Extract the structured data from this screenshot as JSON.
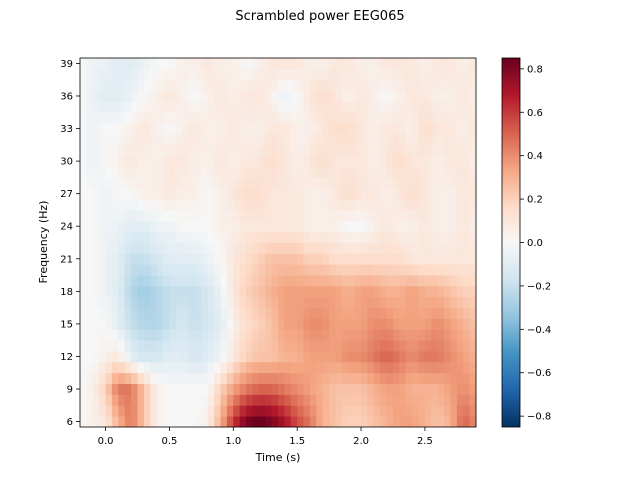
{
  "chart_data": {
    "type": "heatmap",
    "title": "Scrambled power EEG065",
    "xlabel": "Time (s)",
    "ylabel": "Frequency (Hz)",
    "xlim": [
      -0.2,
      2.9
    ],
    "ylim": [
      5.5,
      39.5
    ],
    "x_ticks": [
      "0.0",
      "0.5",
      "1.0",
      "1.5",
      "2.0",
      "2.5"
    ],
    "y_ticks": [
      "6",
      "9",
      "12",
      "15",
      "18",
      "21",
      "24",
      "27",
      "30",
      "33",
      "36",
      "39"
    ],
    "colorbar": {
      "min": -0.85,
      "max": 0.85,
      "ticks": [
        "0.8",
        "0.6",
        "0.4",
        "0.2",
        "0.0",
        "−0.2",
        "−0.4",
        "−0.6",
        "−0.8"
      ],
      "colormap": "RdBu_r"
    },
    "time_points": [
      -0.2,
      -0.1,
      0.0,
      0.1,
      0.2,
      0.3,
      0.4,
      0.5,
      0.6,
      0.7,
      0.8,
      0.9,
      1.0,
      1.1,
      1.2,
      1.3,
      1.4,
      1.5,
      1.6,
      1.7,
      1.8,
      1.9,
      2.0,
      2.1,
      2.2,
      2.3,
      2.4,
      2.5,
      2.6,
      2.7,
      2.8,
      2.9
    ],
    "frequencies": [
      6,
      9,
      12,
      15,
      18,
      21,
      24,
      27,
      30,
      33,
      36,
      39
    ],
    "values": [
      [
        0.0,
        0.05,
        0.1,
        0.3,
        0.45,
        0.25,
        0.05,
        0.0,
        0.0,
        0.0,
        0.05,
        0.3,
        0.6,
        0.8,
        0.85,
        0.8,
        0.7,
        0.55,
        0.45,
        0.3,
        0.25,
        0.2,
        0.2,
        0.25,
        0.3,
        0.35,
        0.35,
        0.3,
        0.25,
        0.3,
        0.5,
        0.4
      ],
      [
        0.0,
        0.05,
        0.2,
        0.45,
        0.45,
        0.25,
        0.05,
        0.0,
        0.0,
        0.0,
        0.0,
        0.2,
        0.35,
        0.45,
        0.5,
        0.5,
        0.45,
        0.4,
        0.35,
        0.3,
        0.25,
        0.25,
        0.25,
        0.3,
        0.35,
        0.35,
        0.3,
        0.3,
        0.3,
        0.35,
        0.4,
        0.35
      ],
      [
        0.0,
        0.0,
        0.05,
        0.1,
        -0.1,
        -0.15,
        -0.15,
        -0.1,
        -0.1,
        -0.15,
        -0.1,
        -0.05,
        0.1,
        0.2,
        0.25,
        0.25,
        0.3,
        0.3,
        0.35,
        0.35,
        0.35,
        0.4,
        0.4,
        0.45,
        0.5,
        0.45,
        0.4,
        0.45,
        0.45,
        0.4,
        0.35,
        0.3
      ],
      [
        0.0,
        0.0,
        0.0,
        -0.1,
        -0.2,
        -0.25,
        -0.25,
        -0.2,
        -0.15,
        -0.2,
        -0.15,
        -0.1,
        0.05,
        0.15,
        0.2,
        0.25,
        0.35,
        0.35,
        0.4,
        0.4,
        0.35,
        0.35,
        0.35,
        0.4,
        0.4,
        0.35,
        0.35,
        0.35,
        0.4,
        0.35,
        0.3,
        0.25
      ],
      [
        0.0,
        0.0,
        -0.05,
        -0.1,
        -0.25,
        -0.3,
        -0.25,
        -0.2,
        -0.2,
        -0.2,
        -0.15,
        -0.05,
        0.1,
        0.2,
        0.25,
        0.3,
        0.35,
        0.35,
        0.35,
        0.35,
        0.35,
        0.3,
        0.35,
        0.35,
        0.3,
        0.3,
        0.35,
        0.3,
        0.3,
        0.25,
        0.2,
        0.2
      ],
      [
        0.0,
        0.0,
        -0.05,
        -0.1,
        -0.2,
        -0.2,
        -0.15,
        -0.1,
        -0.1,
        -0.1,
        -0.05,
        0.0,
        0.1,
        0.15,
        0.2,
        0.25,
        0.25,
        0.25,
        0.2,
        0.2,
        0.15,
        0.15,
        0.15,
        0.15,
        0.15,
        0.15,
        0.1,
        0.1,
        0.1,
        0.1,
        0.1,
        0.1
      ],
      [
        0.0,
        0.0,
        -0.05,
        -0.05,
        -0.1,
        -0.1,
        -0.05,
        -0.05,
        0.0,
        0.0,
        0.0,
        0.05,
        0.05,
        0.1,
        0.1,
        0.1,
        0.1,
        0.1,
        0.05,
        0.05,
        0.05,
        0.0,
        0.0,
        0.05,
        0.1,
        0.05,
        0.05,
        0.1,
        0.05,
        0.05,
        0.1,
        0.05
      ],
      [
        0.0,
        0.0,
        -0.05,
        0.0,
        0.0,
        0.05,
        0.05,
        0.1,
        0.05,
        0.05,
        0.0,
        0.05,
        0.1,
        0.15,
        0.15,
        0.1,
        0.1,
        0.1,
        0.05,
        0.05,
        0.1,
        0.15,
        0.1,
        0.1,
        0.05,
        0.1,
        0.15,
        0.1,
        0.05,
        0.05,
        0.1,
        0.1
      ],
      [
        0.0,
        -0.05,
        0.0,
        0.05,
        0.1,
        0.05,
        0.05,
        0.1,
        0.1,
        0.05,
        0.05,
        0.1,
        0.05,
        0.1,
        0.1,
        0.15,
        0.1,
        0.05,
        0.1,
        0.15,
        0.1,
        0.1,
        0.1,
        0.05,
        0.1,
        0.15,
        0.1,
        0.1,
        0.05,
        0.1,
        0.1,
        0.05
      ],
      [
        0.0,
        -0.05,
        0.0,
        0.0,
        0.05,
        0.1,
        0.05,
        0.0,
        0.05,
        0.1,
        0.05,
        0.05,
        0.1,
        0.05,
        0.05,
        0.1,
        0.1,
        0.05,
        0.05,
        0.1,
        0.15,
        0.15,
        0.1,
        0.05,
        0.1,
        0.1,
        0.05,
        0.15,
        0.1,
        0.1,
        0.05,
        0.1
      ],
      [
        0.0,
        -0.05,
        -0.1,
        -0.1,
        -0.05,
        0.0,
        0.05,
        0.1,
        0.05,
        0.0,
        0.05,
        0.1,
        0.05,
        0.1,
        0.1,
        0.05,
        -0.05,
        0.0,
        0.1,
        0.15,
        0.1,
        0.05,
        0.1,
        0.05,
        0.0,
        0.05,
        0.1,
        0.1,
        0.05,
        0.05,
        0.1,
        0.05
      ],
      [
        0.0,
        -0.05,
        -0.05,
        -0.1,
        -0.1,
        -0.05,
        0.0,
        0.0,
        0.05,
        0.05,
        0.1,
        0.05,
        0.05,
        0.0,
        0.05,
        0.1,
        0.1,
        0.1,
        0.05,
        0.05,
        0.1,
        0.1,
        0.05,
        0.05,
        0.1,
        0.1,
        0.1,
        0.05,
        0.1,
        0.1,
        0.05,
        0.1
      ]
    ]
  }
}
